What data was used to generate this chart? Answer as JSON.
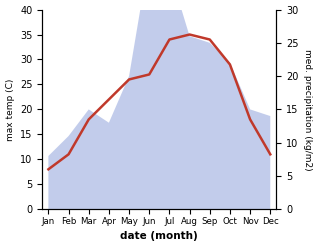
{
  "months": [
    "Jan",
    "Feb",
    "Mar",
    "Apr",
    "May",
    "Jun",
    "Jul",
    "Aug",
    "Sep",
    "Oct",
    "Nov",
    "Dec"
  ],
  "temp": [
    8,
    11,
    18,
    22,
    26,
    27,
    34,
    35,
    34,
    29,
    18,
    11
  ],
  "precip": [
    8,
    11,
    15,
    13,
    20,
    38,
    36,
    26,
    25,
    22,
    15,
    14
  ],
  "temp_color": "#c0392b",
  "precip_fill_color": "#b8c4e8",
  "temp_ylim": [
    0,
    40
  ],
  "precip_ylim": [
    0,
    30
  ],
  "xlabel": "date (month)",
  "ylabel_left": "max temp (C)",
  "ylabel_right": "med. precipitation (kg/m2)",
  "bg_color": "#ffffff"
}
